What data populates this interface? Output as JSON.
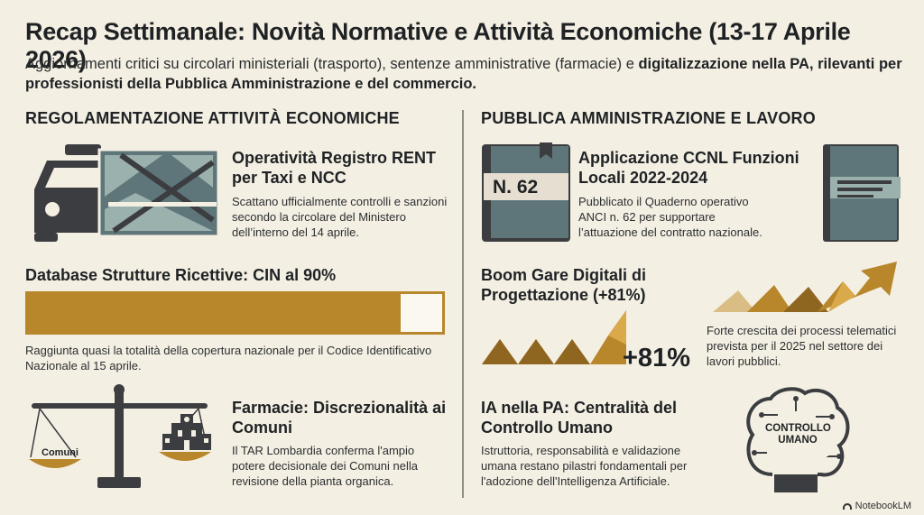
{
  "header": {
    "title": "Recap Settimanale: Novità Normative e Attività Economiche (13-17 Aprile 2026)",
    "subtitle_plain": "Aggiornamenti critici su circolari ministeriali (trasporto), sentenze amministrative (farmacie) e ",
    "subtitle_bold": "digitalizzazione nella PA, rilevanti per professionisti della Pubblica Amministrazione e del commercio."
  },
  "left": {
    "heading": "REGOLAMENTAZIONE ATTIVITÀ ECONOMICHE",
    "rent": {
      "title": "Operatività Registro RENT per Taxi e NCC",
      "text": "Scattano ufficialmente controlli e sanzioni secondo la circolare del Ministero dell’interno del 14 aprile."
    },
    "cin": {
      "title": "Database Strutture Ricettive: CIN al 90%",
      "progress_percent": 90,
      "text": "Raggiunta quasi la totalità della copertura nazionale per il Codice Identificativo Nazionale al 15 aprile."
    },
    "farmacie": {
      "title": "Farmacie: Discrezionalità ai Comuni",
      "scale_label": "Comuni",
      "text": "Il TAR Lombardia conferma l'ampio potere decisionale dei Comuni nella revisione della pianta organica."
    }
  },
  "right": {
    "heading": "PUBBLICA AMMINISTRAZIONE E LAVORO",
    "ccnl": {
      "title": "Applicazione CCNL Funzioni Locali 2022-2024",
      "book_label": "N. 62",
      "text": "Pubblicato il Quaderno operativo ANCI n. 62 per supportare l’attuazione del contratto nazionale."
    },
    "gare": {
      "title": "Boom Gare Digitali di Progettazione (+81%)",
      "big_value": "+81%",
      "text": "Forte crescita dei processi telematici prevista per il 2025 nel settore dei lavori pubblici."
    },
    "ia": {
      "title": "IA nella PA: Centralità del Controllo Umano",
      "brain_line1": "CONTROLLO",
      "brain_line2": "UMANO",
      "text": "Istruttoria, responsabilità e validazione umana restano pilastri fondamentali per l'adozione dell'Intelligenza Artificiale."
    }
  },
  "footer": {
    "brand": "NotebookLM"
  },
  "colors": {
    "accent": "#b8862b",
    "dark": "#3b3d40",
    "slate": "#4f6468",
    "background": "#f4efe3"
  }
}
